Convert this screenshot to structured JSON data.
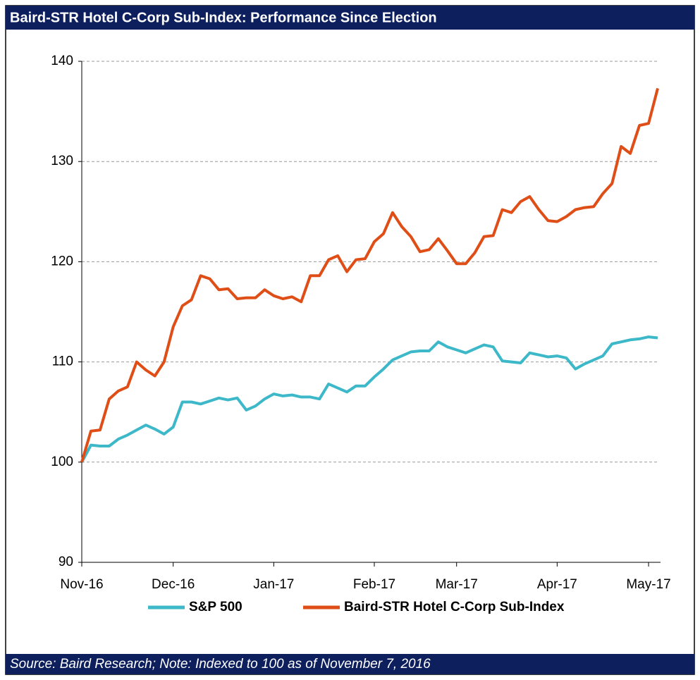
{
  "chart_data": {
    "type": "line",
    "title": "Baird-STR Hotel C-Corp Sub-Index: Performance Since Election",
    "source": "Source: Baird Research; Note: Indexed to 100 as of November 7, 2016",
    "categories": [
      "Nov-16",
      null,
      null,
      null,
      null,
      null,
      null,
      null,
      null,
      null,
      "Dec-16",
      null,
      null,
      null,
      null,
      null,
      null,
      null,
      null,
      null,
      null,
      "Jan-17",
      null,
      null,
      null,
      null,
      null,
      null,
      null,
      null,
      null,
      null,
      "Feb-17",
      null,
      null,
      null,
      null,
      null,
      null,
      null,
      null,
      "Mar-17",
      null,
      null,
      null,
      null,
      null,
      null,
      null,
      null,
      null,
      null,
      "Apr-17",
      null,
      null,
      null,
      null,
      null,
      null,
      null,
      null,
      null,
      "May-17",
      null
    ],
    "series": [
      {
        "name": "S&P 500",
        "color": "#3cb8c9",
        "values": [
          100,
          101.7,
          101.6,
          101.6,
          102.3,
          102.7,
          103.2,
          103.7,
          103.3,
          102.8,
          103.5,
          106,
          106,
          105.8,
          106.1,
          106.4,
          106.2,
          106.4,
          105.2,
          105.6,
          106.3,
          106.8,
          106.6,
          106.7,
          106.5,
          106.5,
          106.3,
          107.8,
          107.4,
          107,
          107.6,
          107.6,
          108.5,
          109.3,
          110.2,
          110.6,
          111,
          111.1,
          111.1,
          112,
          111.5,
          111.2,
          110.9,
          111.3,
          111.7,
          111.5,
          110.1,
          110,
          109.9,
          110.9,
          110.7,
          110.5,
          110.6,
          110.4,
          109.3,
          109.8,
          110.2,
          110.6,
          111.8,
          112,
          112.2,
          112.3,
          112.5,
          112.4
        ]
      },
      {
        "name": "Baird-STR Hotel C-Corp Sub-Index",
        "color": "#e04e17",
        "values": [
          100,
          103.1,
          103.2,
          106.3,
          107.1,
          107.5,
          110,
          109.2,
          108.6,
          110,
          113.5,
          115.6,
          116.2,
          118.6,
          118.3,
          117.2,
          117.3,
          116.3,
          116.4,
          116.4,
          117.2,
          116.6,
          116.3,
          116.5,
          116,
          118.6,
          118.6,
          120.2,
          120.6,
          119,
          120.2,
          120.3,
          122,
          122.8,
          124.9,
          123.5,
          122.5,
          121,
          121.2,
          122.3,
          121.1,
          119.8,
          119.8,
          120.9,
          122.5,
          122.6,
          125.2,
          124.9,
          126,
          126.5,
          125.2,
          124.1,
          124,
          124.5,
          125.2,
          125.4,
          125.5,
          126.8,
          127.8,
          131.5,
          130.8,
          133.6,
          133.8,
          137.3
        ]
      }
    ],
    "ylim": [
      90,
      140
    ],
    "yticks": [
      90,
      100,
      110,
      120,
      130,
      140
    ],
    "grid": true,
    "legend": "bottom"
  }
}
